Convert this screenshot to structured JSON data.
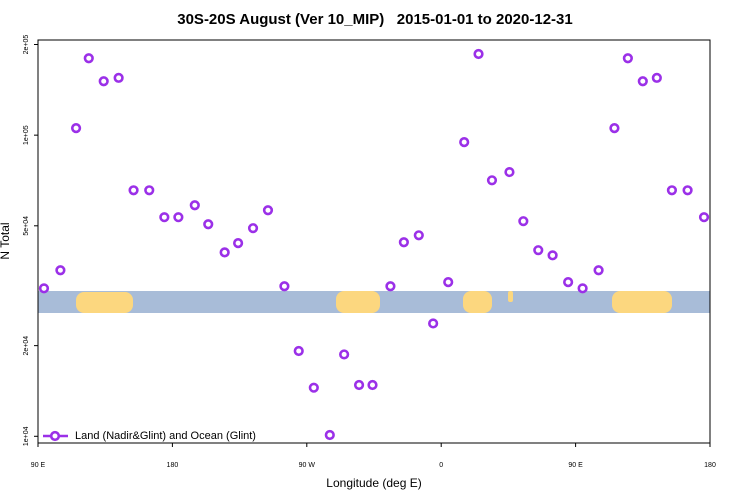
{
  "chart_data": {
    "type": "scatter",
    "title": "30S-20S August (Ver 10_MIP)   2015-01-01 to 2020-12-31",
    "xlabel": "Longitude (deg E)",
    "ylabel": "N Total",
    "xlim": [
      90,
      540
    ],
    "xticks": [
      {
        "value": 90,
        "label": "90 E"
      },
      {
        "value": 180,
        "label": "180"
      },
      {
        "value": 270,
        "label": "90 W"
      },
      {
        "value": 360,
        "label": "0"
      },
      {
        "value": 450,
        "label": "90 E"
      },
      {
        "value": 540,
        "label": "180"
      }
    ],
    "ylim": [
      9500,
      207000
    ],
    "ylog": true,
    "yticks": [
      {
        "value": 10000,
        "label": "1e+04"
      },
      {
        "value": 20000,
        "label": "2e+04"
      },
      {
        "value": 50000,
        "label": "5e+04"
      },
      {
        "value": 100000,
        "label": "1e+05"
      },
      {
        "value": 200000,
        "label": "2e+05"
      }
    ],
    "legend": "bottom-left",
    "series": [
      {
        "name": "Land (Nadir&Glint) and Ocean (Glint)",
        "color": "#9b30e8",
        "x": [
          94,
          105,
          115.5,
          124,
          134,
          144,
          154,
          164.5,
          174.6,
          184,
          195,
          204,
          215,
          224,
          234,
          244,
          255,
          264.6,
          274.7,
          285.4,
          295,
          305,
          314,
          326,
          335,
          345,
          354.6,
          364.7,
          375.4,
          385,
          394,
          405.7,
          415,
          425,
          434.6,
          445,
          454.7,
          465.4,
          476,
          485,
          495,
          504.4,
          514.5,
          525,
          536
        ],
        "values": [
          31000,
          35600,
          105500,
          180000,
          151000,
          155000,
          65600,
          65600,
          53400,
          53400,
          58500,
          50600,
          40800,
          43800,
          49100,
          56300,
          31500,
          19200,
          14500,
          10100,
          18700,
          14800,
          14800,
          31500,
          44100,
          46500,
          23700,
          32500,
          94800,
          186000,
          70800,
          75400,
          51800,
          41500,
          39900,
          32500,
          31000,
          35600,
          105500,
          180000,
          151000,
          155000,
          65600,
          65600,
          53400
        ]
      }
    ]
  }
}
